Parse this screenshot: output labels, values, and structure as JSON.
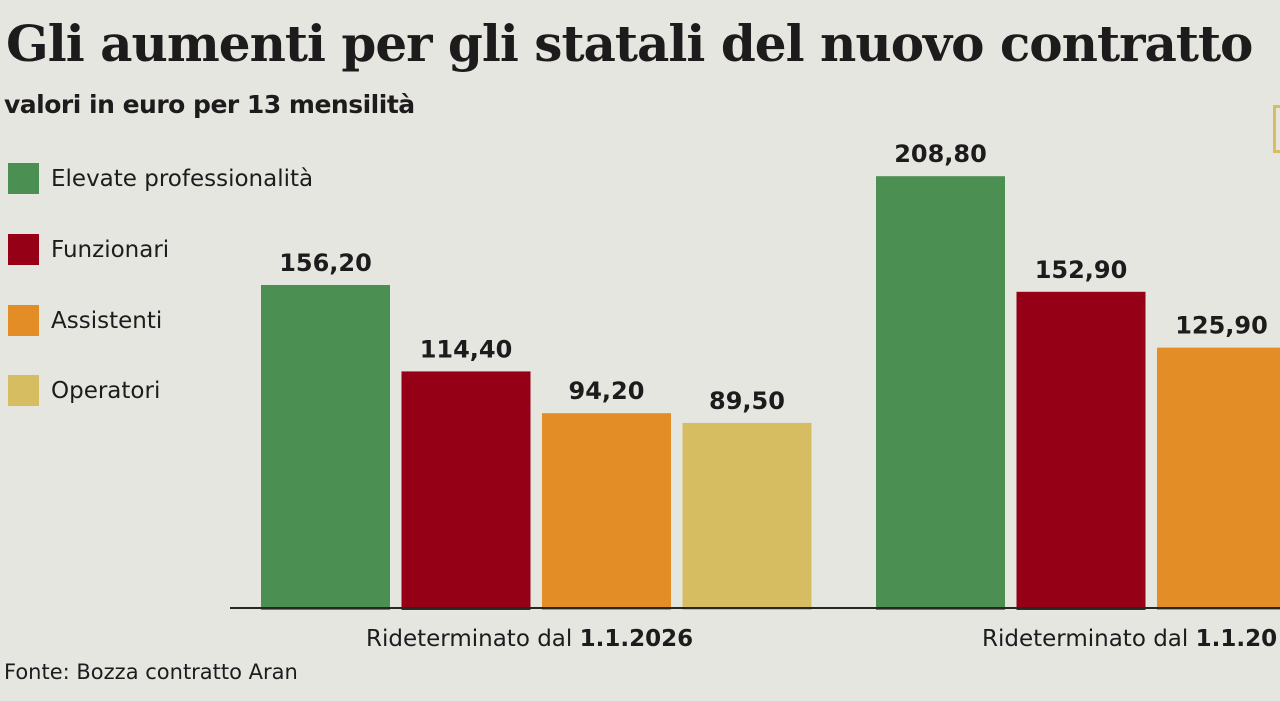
{
  "chart_data": {
    "type": "bar",
    "title": "Gli aumenti per gli statali del nuovo contratto",
    "subtitle": "valori in euro per 13 mensilità",
    "categories": [
      {
        "prefix": "Rideterminato dal ",
        "date": "1.1.2026"
      },
      {
        "prefix": "Rideterminato dal ",
        "date": "1.1.20"
      }
    ],
    "series": [
      {
        "name": "Elevate professionalità",
        "color": "#4b8f53",
        "values": [
          156.2,
          208.8
        ],
        "labels": [
          "156,20",
          "208,80"
        ]
      },
      {
        "name": "Funzionari",
        "color": "#960016",
        "values": [
          114.4,
          152.9
        ],
        "labels": [
          "114,40",
          "152,90"
        ]
      },
      {
        "name": "Assistenti",
        "color": "#e38d27",
        "values": [
          94.2,
          125.9
        ],
        "labels": [
          "94,20",
          "125,90"
        ]
      },
      {
        "name": "Operatori",
        "color": "#d7bd62",
        "values": [
          89.5,
          null
        ],
        "labels": [
          "89,50",
          null
        ]
      }
    ],
    "xlabel": "",
    "ylabel": "",
    "ylim": [
      0,
      220
    ],
    "grid": false,
    "legend": "left"
  },
  "source": "Fonte: Bozza contratto Aran"
}
